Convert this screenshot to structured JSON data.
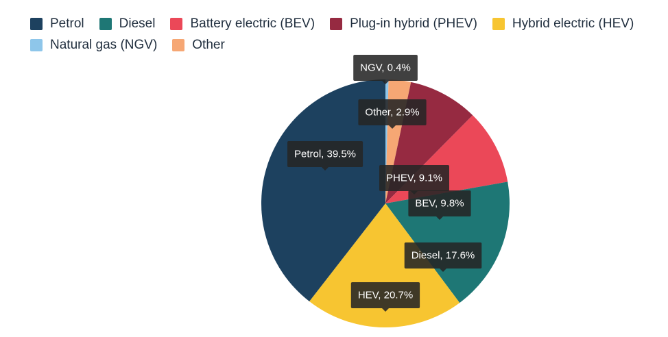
{
  "chart_data": {
    "type": "pie",
    "legend_position": "top-left",
    "slices": [
      {
        "name": "Natural gas (NGV)",
        "short": "NGV",
        "value": 0.4,
        "label": "NGV, 0.4%",
        "color": "#8ec6ea"
      },
      {
        "name": "Other",
        "short": "Other",
        "value": 2.9,
        "label": "Other, 2.9%",
        "color": "#f6a774"
      },
      {
        "name": "Plug-in hybrid (PHEV)",
        "short": "PHEV",
        "value": 9.1,
        "label": "PHEV, 9.1%",
        "color": "#962a41"
      },
      {
        "name": "Battery electric (BEV)",
        "short": "BEV",
        "value": 9.8,
        "label": "BEV, 9.8%",
        "color": "#eb4858"
      },
      {
        "name": "Diesel",
        "short": "Diesel",
        "value": 17.6,
        "label": "Diesel, 17.6%",
        "color": "#1e7775"
      },
      {
        "name": "Hybrid electric (HEV)",
        "short": "HEV",
        "value": 20.7,
        "label": "HEV, 20.7%",
        "color": "#f7c531"
      },
      {
        "name": "Petrol",
        "short": "Petrol",
        "value": 39.5,
        "label": "Petrol, 39.5%",
        "color": "#1d415f"
      }
    ],
    "legend_order": [
      "Petrol",
      "Diesel",
      "Battery electric (BEV)",
      "Plug-in hybrid (PHEV)",
      "Hybrid electric (HEV)",
      "Natural gas (NGV)",
      "Other"
    ]
  }
}
